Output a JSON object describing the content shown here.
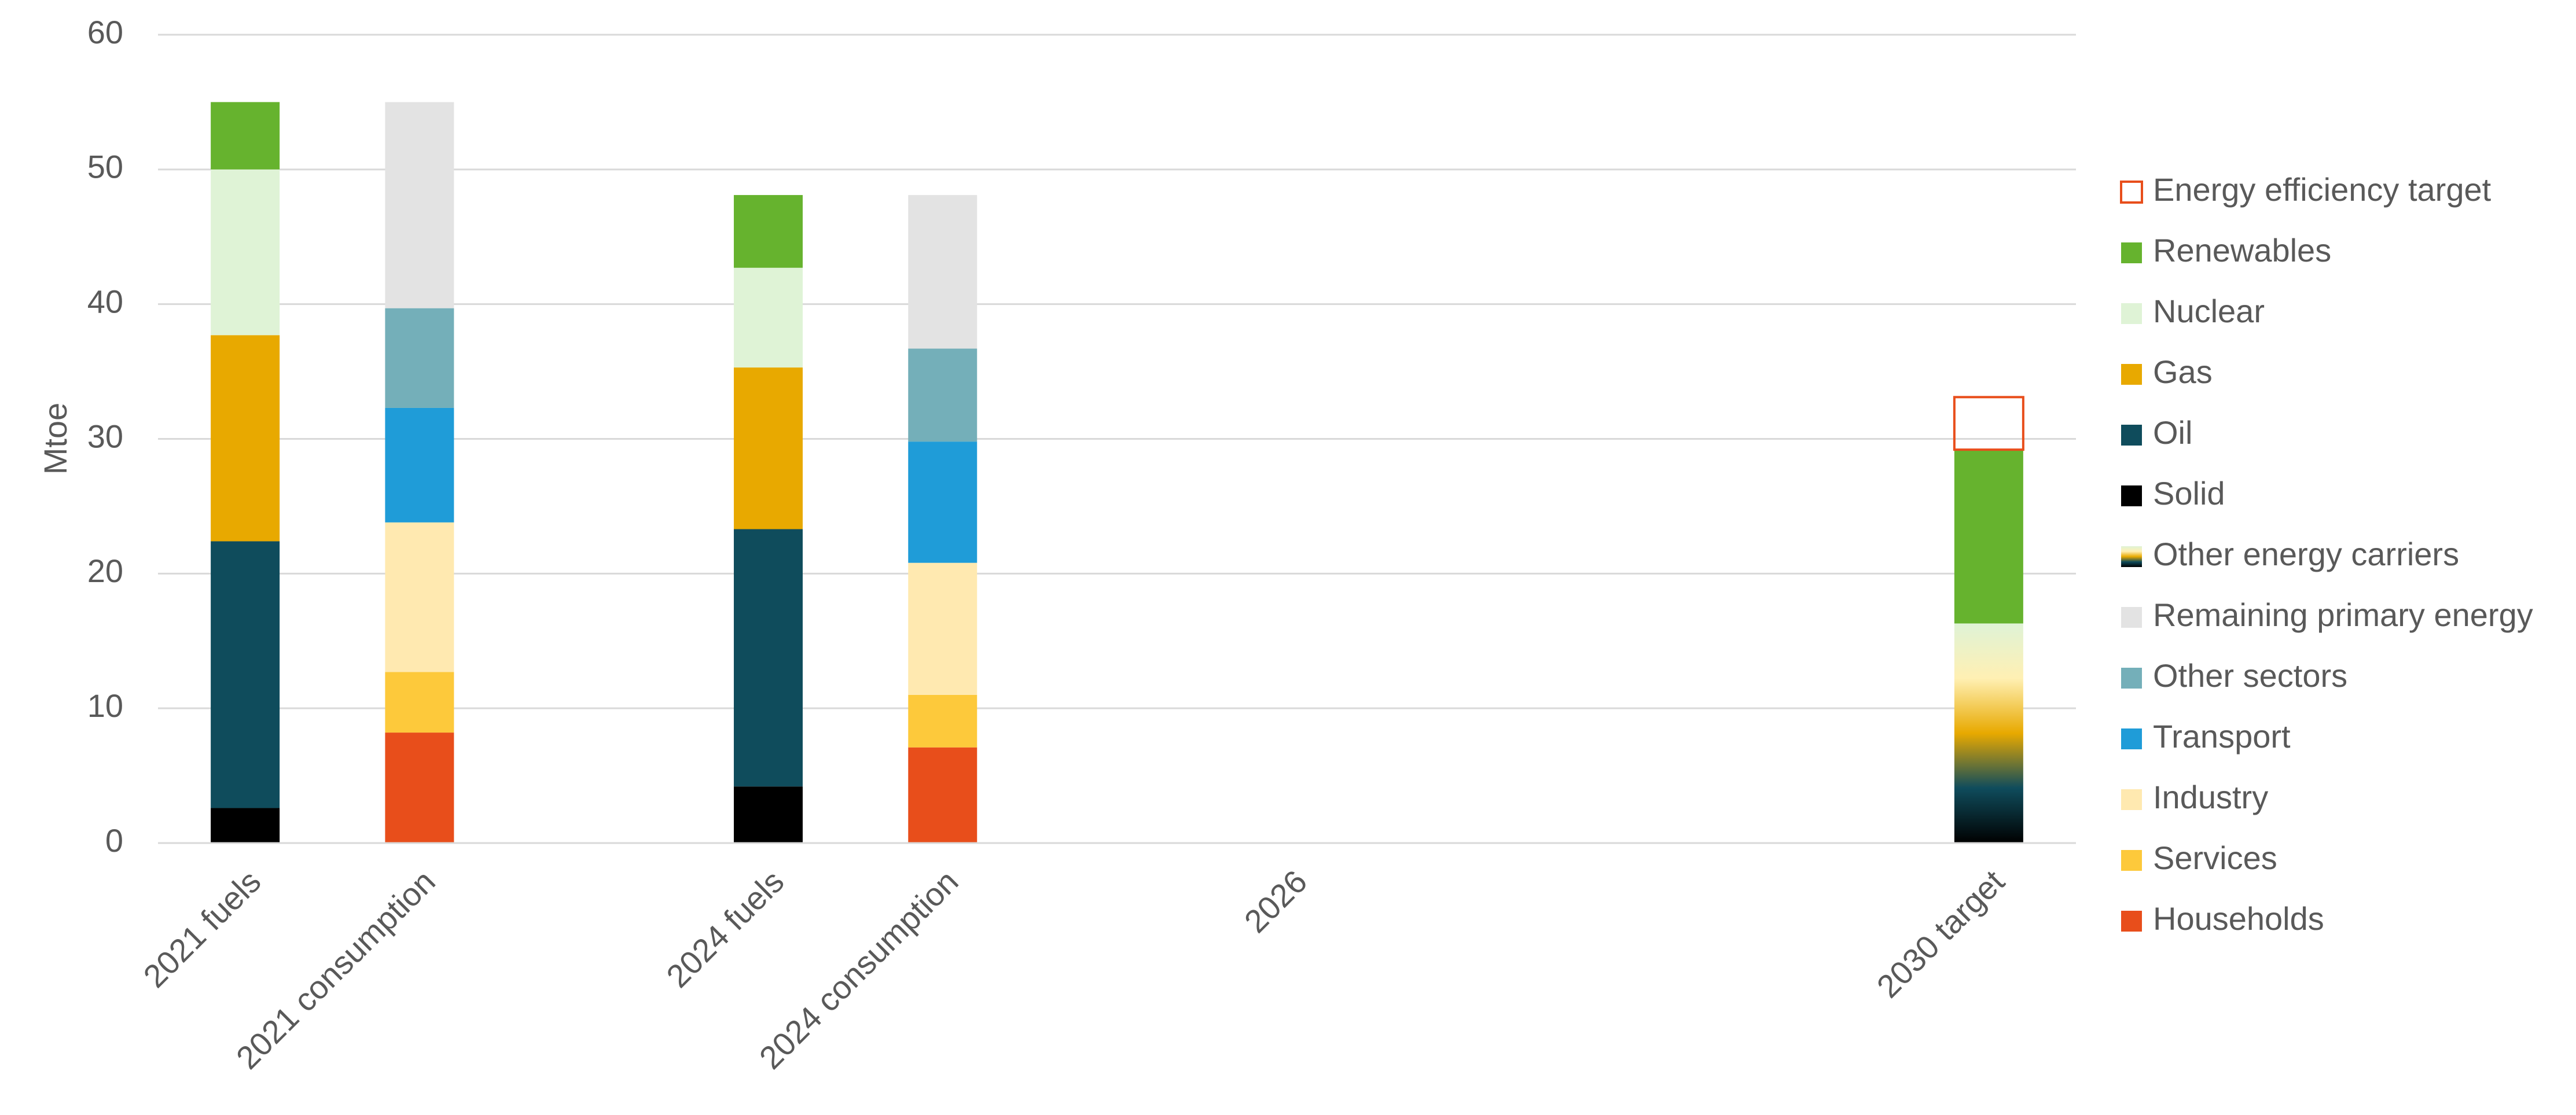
{
  "chart_data": {
    "type": "stacked_bar",
    "y_label": "Mtoe",
    "categories": [
      "2021 fuels",
      "2021 consumption",
      null,
      "2024 fuels",
      "2024 consumption",
      null,
      "2026",
      null,
      null,
      null,
      "2030 target"
    ],
    "ylim": [
      0,
      60
    ],
    "yticks": [
      0,
      10,
      20,
      30,
      40,
      50,
      60
    ],
    "grid": true,
    "legend": "right",
    "series": [
      {
        "name": "Households",
        "color": "#e84e1b",
        "values": [
          null,
          8.2,
          null,
          null,
          7.1,
          null,
          null,
          null,
          null,
          null,
          null
        ]
      },
      {
        "name": "Services",
        "color": "#fdc93b",
        "values": [
          null,
          4.5,
          null,
          null,
          3.9,
          null,
          null,
          null,
          null,
          null,
          null
        ]
      },
      {
        "name": "Industry",
        "color": "#ffe9b0",
        "values": [
          null,
          11.1,
          null,
          null,
          9.8,
          null,
          null,
          null,
          null,
          null,
          null
        ]
      },
      {
        "name": "Transport",
        "color": "#1f9cd8",
        "values": [
          null,
          8.5,
          null,
          null,
          9.0,
          null,
          null,
          null,
          null,
          null,
          null
        ]
      },
      {
        "name": "Other sectors",
        "color": "#74afb9",
        "values": [
          null,
          7.4,
          null,
          null,
          6.9,
          null,
          null,
          null,
          null,
          null,
          null
        ]
      },
      {
        "name": "Remaining primary energy",
        "color": "#e3e3e3",
        "values": [
          null,
          15.3,
          null,
          null,
          11.4,
          null,
          null,
          null,
          null,
          null,
          null
        ]
      },
      {
        "name": "Other energy carriers",
        "color": "#9ea3a8",
        "gradient": [
          "#000000",
          "#0f4c5c",
          "#e8a900",
          "#fff0b3",
          "#dff3d6"
        ],
        "values": [
          null,
          null,
          null,
          null,
          null,
          null,
          null,
          null,
          null,
          null,
          16.3
        ]
      },
      {
        "name": "Solid",
        "color": "#000000",
        "values": [
          2.6,
          null,
          null,
          4.2,
          null,
          null,
          null,
          null,
          null,
          null,
          null
        ]
      },
      {
        "name": "Oil",
        "color": "#0f4c5c",
        "values": [
          19.8,
          null,
          null,
          19.1,
          null,
          null,
          null,
          null,
          null,
          null,
          null
        ]
      },
      {
        "name": "Gas",
        "color": "#e8a900",
        "values": [
          15.3,
          null,
          null,
          12.0,
          null,
          null,
          null,
          null,
          null,
          null,
          null
        ]
      },
      {
        "name": "Nuclear",
        "color": "#dff3d6",
        "values": [
          12.3,
          null,
          null,
          7.4,
          null,
          null,
          null,
          null,
          null,
          null,
          null
        ]
      },
      {
        "name": "Renewables",
        "color": "#66b32e",
        "values": [
          5.0,
          null,
          null,
          5.4,
          null,
          null,
          null,
          null,
          null,
          null,
          12.9
        ]
      },
      {
        "name": "Energy efficiency target",
        "color": "#e84e1b",
        "outline": true,
        "values": [
          null,
          null,
          null,
          null,
          null,
          null,
          null,
          null,
          null,
          null,
          3.9
        ]
      }
    ]
  }
}
